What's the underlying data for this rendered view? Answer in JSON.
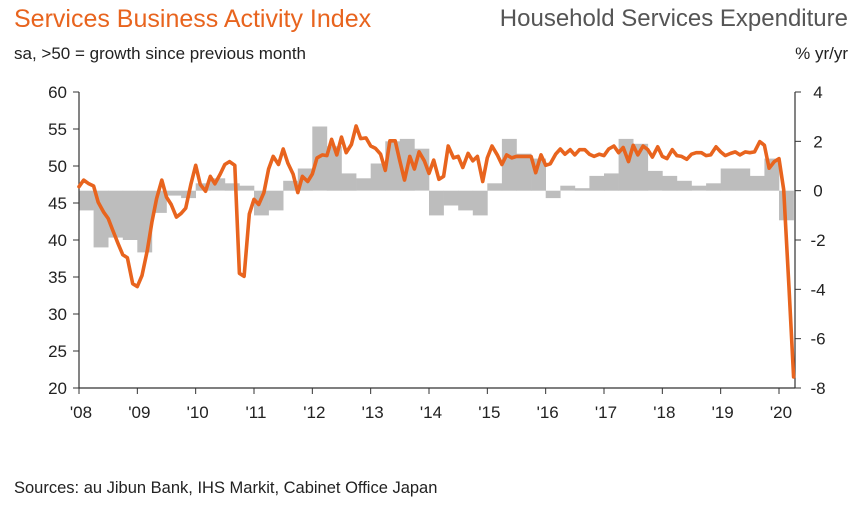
{
  "header": {
    "title_left": "Services Business Activity Index",
    "title_right": "Household Services Expenditure",
    "subtitle_left": "sa, >50 = growth since previous month",
    "subtitle_right": "% yr/yr"
  },
  "footer": {
    "source": "Sources: au Jibun Bank, IHS Markit, Cabinet Office Japan"
  },
  "colors": {
    "line": "#e8641e",
    "bars": "#bdbdbd",
    "axis": "#333333"
  },
  "chart_data": {
    "type": "bar+line",
    "x_range": [
      2008.0,
      2020.42
    ],
    "x_ticks": [
      {
        "value": 2008,
        "label": "'08"
      },
      {
        "value": 2009,
        "label": "'09"
      },
      {
        "value": 2010,
        "label": "'10"
      },
      {
        "value": 2011,
        "label": "'11"
      },
      {
        "value": 2012,
        "label": "'12"
      },
      {
        "value": 2013,
        "label": "'13"
      },
      {
        "value": 2014,
        "label": "'14"
      },
      {
        "value": 2015,
        "label": "'15"
      },
      {
        "value": 2016,
        "label": "'16"
      },
      {
        "value": 2017,
        "label": "'17"
      },
      {
        "value": 2018,
        "label": "'18"
      },
      {
        "value": 2019,
        "label": "'19"
      },
      {
        "value": 2020,
        "label": "'20"
      }
    ],
    "left_axis": {
      "min": 20,
      "max": 60,
      "ticks": [
        "20",
        "25",
        "30",
        "35",
        "40",
        "45",
        "50",
        "55",
        "60"
      ]
    },
    "right_axis": {
      "min": -8,
      "max": 4,
      "ticks": [
        "-8",
        "-6",
        "-4",
        "-2",
        "0",
        "2",
        "4"
      ]
    },
    "legend": "none",
    "grid": false,
    "bar_series": {
      "axis": "right",
      "x": [
        2008.0,
        2008.25,
        2008.5,
        2008.75,
        2009.0,
        2009.25,
        2009.5,
        2009.75,
        2010.0,
        2010.25,
        2010.5,
        2010.75,
        2011.0,
        2011.25,
        2011.5,
        2011.75,
        2012.0,
        2012.25,
        2012.5,
        2012.75,
        2013.0,
        2013.25,
        2013.5,
        2013.75,
        2014.0,
        2014.25,
        2014.5,
        2014.75,
        2015.0,
        2015.25,
        2015.5,
        2015.75,
        2016.0,
        2016.25,
        2016.5,
        2016.75,
        2017.0,
        2017.25,
        2017.5,
        2017.75,
        2018.0,
        2018.25,
        2018.5,
        2018.75,
        2019.0,
        2019.25,
        2019.5,
        2019.75,
        2020.0
      ],
      "values": [
        -0.8,
        -2.3,
        -1.9,
        -2.0,
        -2.5,
        -0.9,
        -0.2,
        -0.3,
        0.3,
        0.5,
        0.3,
        0.2,
        -1.0,
        -0.8,
        0.4,
        0.9,
        2.6,
        1.8,
        0.7,
        0.5,
        1.1,
        2.0,
        2.1,
        1.7,
        -1.0,
        -0.6,
        -0.8,
        -1.0,
        0.3,
        2.1,
        1.5,
        1.3,
        -0.3,
        0.2,
        0.1,
        0.6,
        0.7,
        2.1,
        1.9,
        0.8,
        0.6,
        0.4,
        0.2,
        0.3,
        0.9,
        0.9,
        0.6,
        1.3,
        -1.2
      ]
    },
    "line_series": {
      "axis": "left",
      "x": [
        2008.0,
        2008.08,
        2008.17,
        2008.25,
        2008.33,
        2008.42,
        2008.5,
        2008.58,
        2008.67,
        2008.75,
        2008.83,
        2008.92,
        2009.0,
        2009.08,
        2009.17,
        2009.25,
        2009.33,
        2009.42,
        2009.5,
        2009.58,
        2009.67,
        2009.75,
        2009.83,
        2009.92,
        2010.0,
        2010.08,
        2010.17,
        2010.25,
        2010.33,
        2010.42,
        2010.5,
        2010.58,
        2010.67,
        2010.75,
        2010.83,
        2010.92,
        2011.0,
        2011.08,
        2011.17,
        2011.25,
        2011.33,
        2011.42,
        2011.5,
        2011.58,
        2011.67,
        2011.75,
        2011.83,
        2011.92,
        2012.0,
        2012.08,
        2012.17,
        2012.25,
        2012.33,
        2012.42,
        2012.5,
        2012.58,
        2012.67,
        2012.75,
        2012.83,
        2012.92,
        2013.0,
        2013.08,
        2013.17,
        2013.25,
        2013.33,
        2013.42,
        2013.5,
        2013.58,
        2013.67,
        2013.75,
        2013.83,
        2013.92,
        2014.0,
        2014.08,
        2014.17,
        2014.25,
        2014.33,
        2014.42,
        2014.5,
        2014.58,
        2014.67,
        2014.75,
        2014.83,
        2014.92,
        2015.0,
        2015.08,
        2015.17,
        2015.25,
        2015.33,
        2015.42,
        2015.5,
        2015.58,
        2015.67,
        2015.75,
        2015.83,
        2015.92,
        2016.0,
        2016.08,
        2016.17,
        2016.25,
        2016.33,
        2016.42,
        2016.5,
        2016.58,
        2016.67,
        2016.75,
        2016.83,
        2016.92,
        2017.0,
        2017.08,
        2017.17,
        2017.25,
        2017.33,
        2017.42,
        2017.5,
        2017.58,
        2017.67,
        2017.75,
        2017.83,
        2017.92,
        2018.0,
        2018.08,
        2018.17,
        2018.25,
        2018.33,
        2018.42,
        2018.5,
        2018.58,
        2018.67,
        2018.75,
        2018.83,
        2018.92,
        2019.0,
        2019.08,
        2019.17,
        2019.25,
        2019.33,
        2019.42,
        2019.5,
        2019.58,
        2019.67,
        2019.75,
        2019.83,
        2019.92,
        2020.0,
        2020.08,
        2020.17,
        2020.25
      ],
      "values": [
        47.2,
        48.1,
        47.6,
        47.3,
        45.1,
        43.8,
        42.9,
        41.3,
        39.5,
        38.0,
        37.6,
        34.1,
        33.7,
        35.2,
        38.6,
        42.4,
        45.6,
        48.1,
        45.8,
        44.8,
        43.1,
        43.6,
        44.3,
        47.6,
        50.1,
        47.5,
        46.6,
        48.6,
        47.6,
        48.9,
        50.2,
        50.6,
        50.1,
        35.5,
        35.1,
        43.5,
        45.5,
        44.8,
        46.4,
        49.6,
        51.3,
        50.2,
        52.3,
        50.4,
        48.9,
        46.4,
        48.6,
        47.9,
        48.9,
        51.1,
        51.5,
        51.4,
        53.6,
        51.5,
        53.9,
        51.8,
        52.9,
        55.4,
        53.7,
        53.8,
        52.7,
        52.4,
        51.6,
        49.4,
        53.4,
        53.4,
        50.7,
        48.1,
        51.3,
        49.6,
        51.9,
        50.7,
        49.0,
        50.8,
        48.2,
        48.6,
        52.7,
        51.1,
        51.3,
        49.8,
        51.7,
        50.7,
        51.3,
        47.9,
        51.1,
        52.7,
        51.5,
        50.2,
        51.5,
        51.1,
        51.3,
        51.3,
        51.3,
        51.3,
        49.1,
        51.5,
        50.1,
        50.3,
        51.6,
        52.3,
        51.6,
        52.2,
        51.5,
        52.2,
        52.2,
        51.6,
        51.3,
        51.6,
        51.4,
        52.3,
        52.7,
        51.8,
        52.5,
        50.6,
        52.8,
        51.5,
        52.7,
        52.2,
        51.2,
        52.6,
        51.3,
        51.0,
        52.2,
        51.4,
        51.3,
        50.9,
        51.6,
        51.8,
        51.8,
        51.4,
        51.5,
        52.6,
        51.9,
        51.4,
        51.7,
        51.9,
        51.5,
        51.9,
        51.8,
        51.9,
        53.3,
        52.8,
        49.7,
        50.6,
        51.0,
        46.8,
        33.8,
        21.5
      ]
    }
  }
}
